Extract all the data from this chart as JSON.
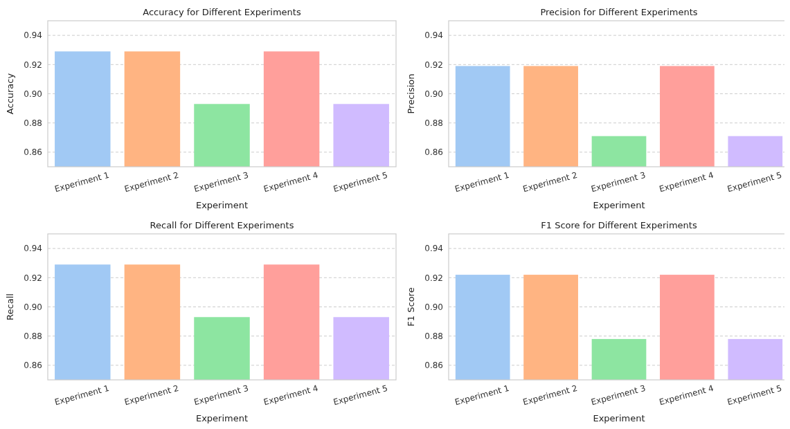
{
  "chart_data": [
    {
      "type": "bar",
      "title": "Accuracy for Different Experiments",
      "xlabel": "Experiment",
      "ylabel": "Accuracy",
      "categories": [
        "Experiment 1",
        "Experiment 2",
        "Experiment 3",
        "Experiment 4",
        "Experiment 5"
      ],
      "values": [
        0.929,
        0.929,
        0.893,
        0.929,
        0.893
      ],
      "colors": [
        "#a1c9f4",
        "#ffb482",
        "#8de5a1",
        "#ff9f9b",
        "#d0bbff"
      ],
      "ylim": [
        0.85,
        0.95
      ],
      "yticks": [
        {
          "value": 0.86,
          "label": "0.86"
        },
        {
          "value": 0.88,
          "label": "0.88"
        },
        {
          "value": 0.9,
          "label": "0.90"
        },
        {
          "value": 0.92,
          "label": "0.92"
        },
        {
          "value": 0.94,
          "label": "0.94"
        }
      ],
      "grid": "y"
    },
    {
      "type": "bar",
      "title": "Precision for Different Experiments",
      "xlabel": "Experiment",
      "ylabel": "Precision",
      "categories": [
        "Experiment 1",
        "Experiment 2",
        "Experiment 3",
        "Experiment 4",
        "Experiment 5"
      ],
      "values": [
        0.919,
        0.919,
        0.871,
        0.919,
        0.871
      ],
      "colors": [
        "#a1c9f4",
        "#ffb482",
        "#8de5a1",
        "#ff9f9b",
        "#d0bbff"
      ],
      "ylim": [
        0.85,
        0.95
      ],
      "yticks": [
        {
          "value": 0.86,
          "label": "0.86"
        },
        {
          "value": 0.88,
          "label": "0.88"
        },
        {
          "value": 0.9,
          "label": "0.90"
        },
        {
          "value": 0.92,
          "label": "0.92"
        },
        {
          "value": 0.94,
          "label": "0.94"
        }
      ],
      "grid": "y"
    },
    {
      "type": "bar",
      "title": "Recall for Different Experiments",
      "xlabel": "Experiment",
      "ylabel": "Recall",
      "categories": [
        "Experiment 1",
        "Experiment 2",
        "Experiment 3",
        "Experiment 4",
        "Experiment 5"
      ],
      "values": [
        0.929,
        0.929,
        0.893,
        0.929,
        0.893
      ],
      "colors": [
        "#a1c9f4",
        "#ffb482",
        "#8de5a1",
        "#ff9f9b",
        "#d0bbff"
      ],
      "ylim": [
        0.85,
        0.95
      ],
      "yticks": [
        {
          "value": 0.86,
          "label": "0.86"
        },
        {
          "value": 0.88,
          "label": "0.88"
        },
        {
          "value": 0.9,
          "label": "0.90"
        },
        {
          "value": 0.92,
          "label": "0.92"
        },
        {
          "value": 0.94,
          "label": "0.94"
        }
      ],
      "grid": "y"
    },
    {
      "type": "bar",
      "title": "F1 Score for Different Experiments",
      "xlabel": "Experiment",
      "ylabel": "F1 Score",
      "categories": [
        "Experiment 1",
        "Experiment 2",
        "Experiment 3",
        "Experiment 4",
        "Experiment 5"
      ],
      "values": [
        0.922,
        0.922,
        0.878,
        0.922,
        0.878
      ],
      "colors": [
        "#a1c9f4",
        "#ffb482",
        "#8de5a1",
        "#ff9f9b",
        "#d0bbff"
      ],
      "ylim": [
        0.85,
        0.95
      ],
      "yticks": [
        {
          "value": 0.86,
          "label": "0.86"
        },
        {
          "value": 0.88,
          "label": "0.88"
        },
        {
          "value": 0.9,
          "label": "0.90"
        },
        {
          "value": 0.92,
          "label": "0.92"
        },
        {
          "value": 0.94,
          "label": "0.94"
        }
      ],
      "grid": "y"
    }
  ]
}
